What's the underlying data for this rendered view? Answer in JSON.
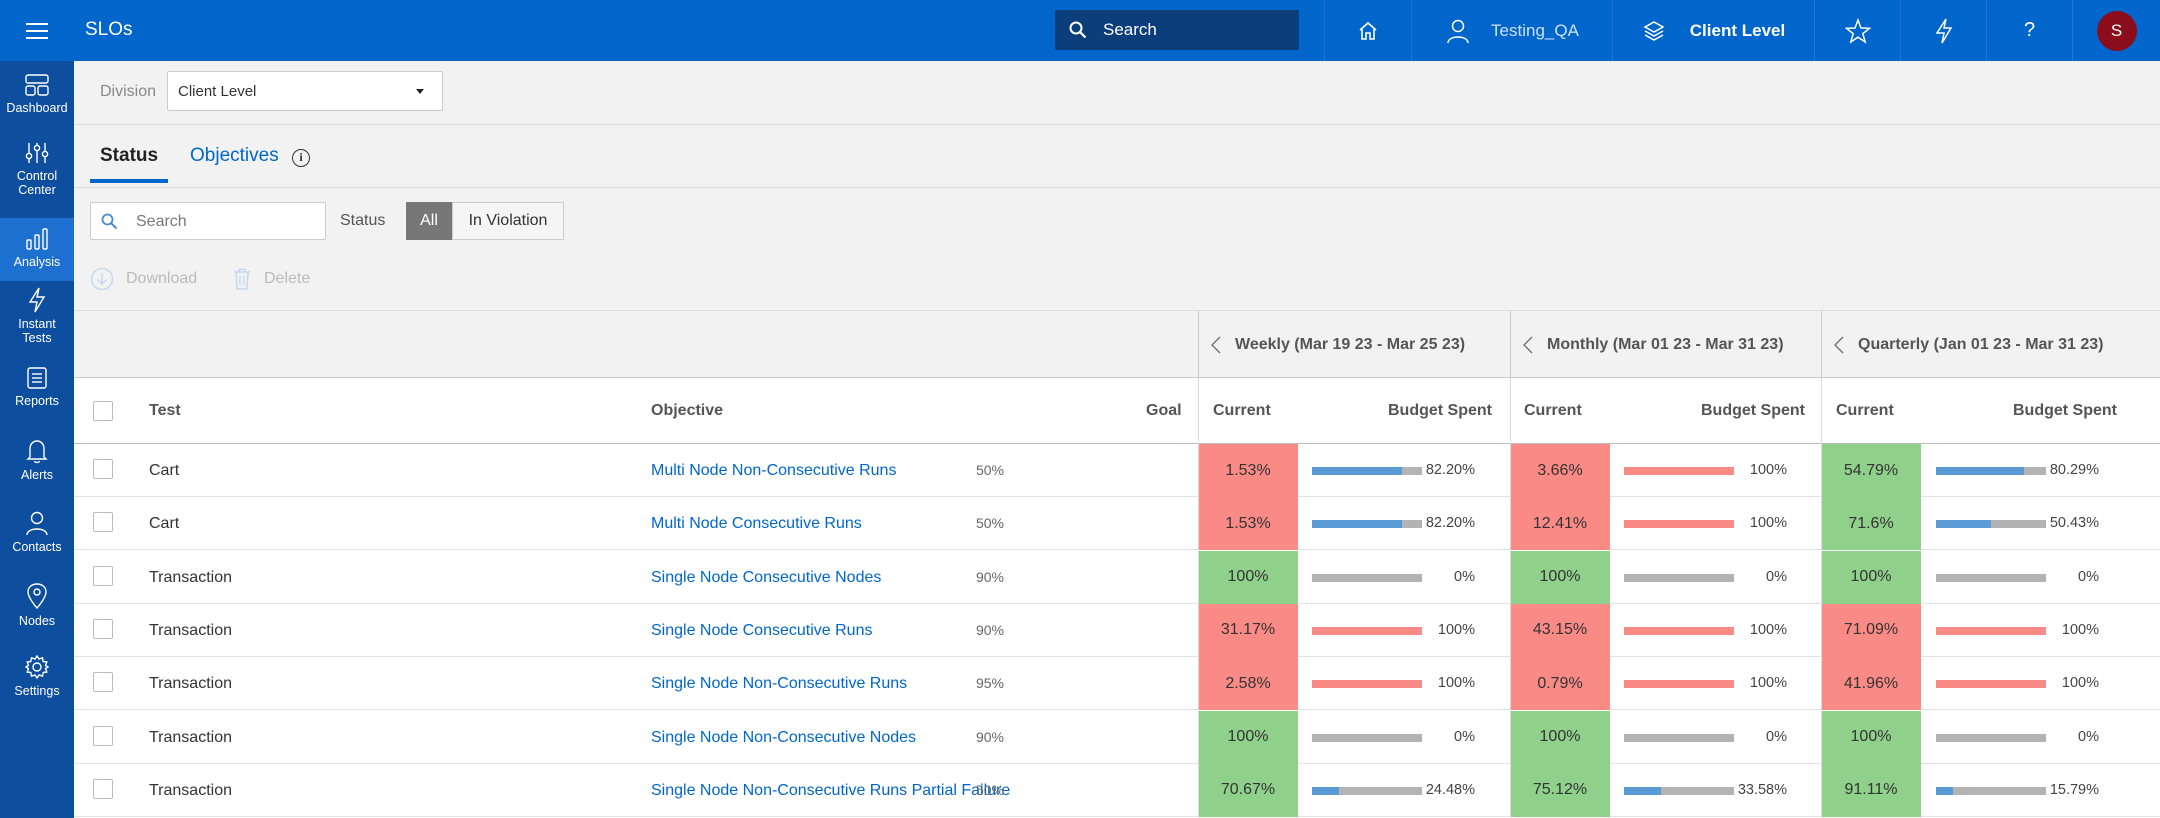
{
  "app": {
    "title": "SLOs"
  },
  "topbar": {
    "search_placeholder": "Search",
    "user_label": "Testing_QA",
    "level_label": "Client Level",
    "avatar_initial": "S",
    "help_label": "?"
  },
  "sidebar": {
    "items": [
      {
        "label": "Dashboard",
        "icon": "dashboard-icon",
        "active": false
      },
      {
        "label": "Control Center",
        "icon": "sliders-icon",
        "active": false
      },
      {
        "label": "Analysis",
        "icon": "bar-chart-icon",
        "active": true
      },
      {
        "label": "Instant Tests",
        "icon": "lightning-icon",
        "active": false
      },
      {
        "label": "Reports",
        "icon": "report-icon",
        "active": false
      },
      {
        "label": "Alerts",
        "icon": "bell-icon",
        "active": false
      },
      {
        "label": "Contacts",
        "icon": "person-icon",
        "active": false
      },
      {
        "label": "Nodes",
        "icon": "map-pin-icon",
        "active": false
      },
      {
        "label": "Settings",
        "icon": "gear-icon",
        "active": false
      }
    ]
  },
  "division": {
    "label": "Division",
    "value": "Client Level"
  },
  "tabs": {
    "status": "Status",
    "objectives": "Objectives",
    "info": "i"
  },
  "filters": {
    "search_placeholder": "Search",
    "status_label": "Status",
    "all_label": "All",
    "violation_label": "In Violation",
    "download_label": "Download",
    "delete_label": "Delete"
  },
  "periods": {
    "weekly": "Weekly (Mar 19 23 - Mar 25 23)",
    "monthly": "Monthly (Mar 01 23 - Mar 31 23)",
    "quarterly": "Quarterly (Jan 01 23 - Mar 31 23)"
  },
  "columns": {
    "test": "Test",
    "objective": "Objective",
    "goal": "Goal",
    "current": "Current",
    "budget": "Budget Spent"
  },
  "colors": {
    "good": "#8fd08b",
    "bad": "#fa8a86",
    "bar_blue": "#5b9bd5",
    "bar_red": "#fa8a86",
    "bar_gray": "#b3b3b3"
  },
  "rows": [
    {
      "test": "Cart",
      "objective": "Multi Node Non-Consecutive Runs",
      "goal": "50%",
      "w_cur": "1.53%",
      "w_status": "bad",
      "w_budget": "82.20%",
      "w_fill": 0.822,
      "m_cur": "3.66%",
      "m_status": "bad",
      "m_budget": "100%",
      "m_fill": 1.0,
      "q_cur": "54.79%",
      "q_status": "good",
      "q_budget": "80.29%",
      "q_fill": 0.8029
    },
    {
      "test": "Cart",
      "objective": "Multi Node Consecutive Runs",
      "goal": "50%",
      "w_cur": "1.53%",
      "w_status": "bad",
      "w_budget": "82.20%",
      "w_fill": 0.822,
      "m_cur": "12.41%",
      "m_status": "bad",
      "m_budget": "100%",
      "m_fill": 1.0,
      "q_cur": "71.6%",
      "q_status": "good",
      "q_budget": "50.43%",
      "q_fill": 0.5043
    },
    {
      "test": "Transaction",
      "objective": "Single Node Consecutive Nodes",
      "goal": "90%",
      "w_cur": "100%",
      "w_status": "good",
      "w_budget": "0%",
      "w_fill": 0,
      "m_cur": "100%",
      "m_status": "good",
      "m_budget": "0%",
      "m_fill": 0,
      "q_cur": "100%",
      "q_status": "good",
      "q_budget": "0%",
      "q_fill": 0
    },
    {
      "test": "Transaction",
      "objective": "Single Node Consecutive Runs",
      "goal": "90%",
      "w_cur": "31.17%",
      "w_status": "bad",
      "w_budget": "100%",
      "w_fill": 1.0,
      "m_cur": "43.15%",
      "m_status": "bad",
      "m_budget": "100%",
      "m_fill": 1.0,
      "q_cur": "71.09%",
      "q_status": "bad",
      "q_budget": "100%",
      "q_fill": 1.0
    },
    {
      "test": "Transaction",
      "objective": "Single Node Non-Consecutive Runs",
      "goal": "95%",
      "w_cur": "2.58%",
      "w_status": "bad",
      "w_budget": "100%",
      "w_fill": 1.0,
      "m_cur": "0.79%",
      "m_status": "bad",
      "m_budget": "100%",
      "m_fill": 1.0,
      "q_cur": "41.96%",
      "q_status": "bad",
      "q_budget": "100%",
      "q_fill": 1.0
    },
    {
      "test": "Transaction",
      "objective": "Single Node Non-Consecutive Nodes",
      "goal": "90%",
      "w_cur": "100%",
      "w_status": "good",
      "w_budget": "0%",
      "w_fill": 0,
      "m_cur": "100%",
      "m_status": "good",
      "m_budget": "0%",
      "m_fill": 0,
      "q_cur": "100%",
      "q_status": "good",
      "q_budget": "0%",
      "q_fill": 0
    },
    {
      "test": "Transaction",
      "objective": "Single Node Non-Consecutive Runs Partial Failure",
      "goal": "50%",
      "w_cur": "70.67%",
      "w_status": "good",
      "w_budget": "24.48%",
      "w_fill": 0.2448,
      "m_cur": "75.12%",
      "m_status": "good",
      "m_budget": "33.58%",
      "m_fill": 0.3358,
      "q_cur": "91.11%",
      "q_status": "good",
      "q_budget": "15.79%",
      "q_fill": 0.1579
    }
  ]
}
